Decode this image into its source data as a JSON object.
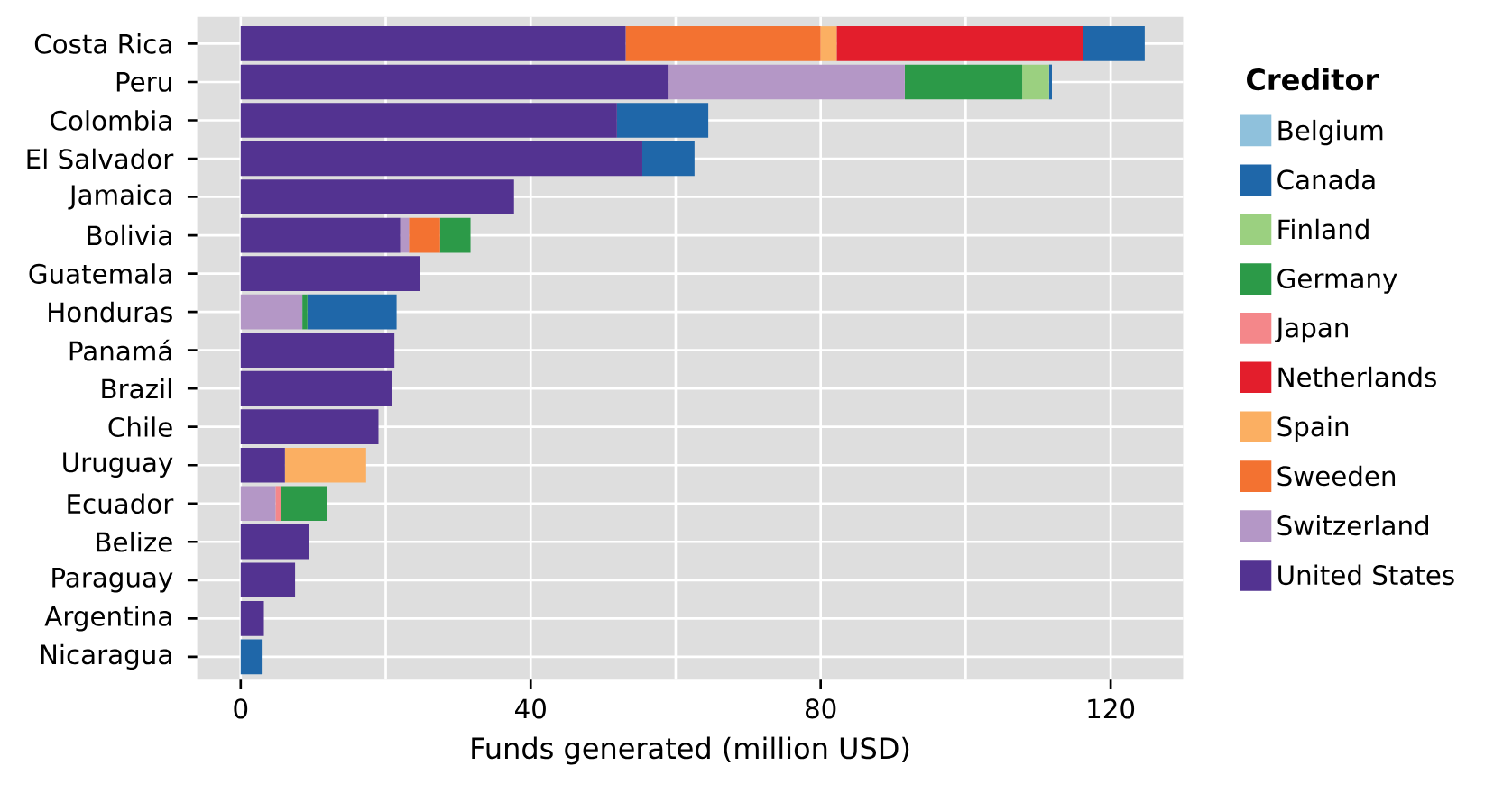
{
  "chart_data": {
    "type": "bar",
    "orientation": "horizontal",
    "stacked": true,
    "xlabel": "Funds generated (million USD)",
    "legend_title": "Creditor",
    "legend": "right",
    "grid": true,
    "categories": [
      "Costa Rica",
      "Peru",
      "Colombia",
      "El Salvador",
      "Jamaica",
      "Bolivia",
      "Guatemala",
      "Honduras",
      "Panamá",
      "Brazil",
      "Chile",
      "Uruguay",
      "Ecuador",
      "Belize",
      "Paraguay",
      "Argentina",
      "Nicaragua"
    ],
    "xlim": [
      -6,
      130
    ],
    "xticks": [
      0,
      40,
      80,
      120
    ],
    "series": [
      {
        "name": "United States",
        "color": "#533391",
        "values": [
          53.1,
          58.9,
          51.9,
          55.4,
          37.7,
          22.0,
          24.7,
          null,
          21.2,
          20.9,
          19.0,
          6.1,
          null,
          9.4,
          7.5,
          3.2,
          null
        ]
      },
      {
        "name": "Switzerland",
        "color": "#b497c6",
        "values": [
          null,
          32.7,
          null,
          null,
          null,
          1.2,
          null,
          8.5,
          null,
          null,
          null,
          null,
          4.8,
          null,
          null,
          null,
          null
        ]
      },
      {
        "name": "Sweeden",
        "color": "#f37231",
        "values": [
          26.9,
          null,
          null,
          null,
          null,
          4.3,
          null,
          null,
          null,
          null,
          null,
          null,
          null,
          null,
          null,
          null,
          null
        ]
      },
      {
        "name": "Spain",
        "color": "#fbaf62",
        "values": [
          2.2,
          null,
          null,
          null,
          null,
          null,
          null,
          null,
          null,
          null,
          null,
          11.2,
          null,
          null,
          null,
          null,
          null
        ]
      },
      {
        "name": "Netherlands",
        "color": "#e31e2c",
        "values": [
          34.0,
          null,
          null,
          null,
          null,
          null,
          null,
          null,
          null,
          null,
          null,
          null,
          null,
          null,
          null,
          null,
          null
        ]
      },
      {
        "name": "Japan",
        "color": "#f4878a",
        "values": [
          null,
          null,
          null,
          null,
          null,
          null,
          null,
          null,
          null,
          null,
          null,
          null,
          0.7,
          null,
          null,
          null,
          null
        ]
      },
      {
        "name": "Germany",
        "color": "#2c9a48",
        "values": [
          null,
          16.2,
          null,
          null,
          null,
          4.2,
          null,
          0.7,
          null,
          null,
          null,
          null,
          6.4,
          null,
          null,
          null,
          null
        ]
      },
      {
        "name": "Finland",
        "color": "#9bd080",
        "values": [
          null,
          3.7,
          null,
          null,
          null,
          null,
          null,
          null,
          null,
          null,
          null,
          null,
          null,
          null,
          null,
          null,
          null
        ]
      },
      {
        "name": "Canada",
        "color": "#1f67a9",
        "values": [
          8.5,
          0.4,
          12.6,
          7.2,
          null,
          null,
          null,
          12.3,
          null,
          null,
          null,
          null,
          null,
          null,
          null,
          null,
          2.9
        ]
      },
      {
        "name": "Belgium",
        "color": "#8fc1dc",
        "values": [
          null,
          null,
          null,
          null,
          null,
          null,
          null,
          null,
          null,
          null,
          null,
          null,
          null,
          null,
          null,
          null,
          null
        ]
      }
    ]
  }
}
